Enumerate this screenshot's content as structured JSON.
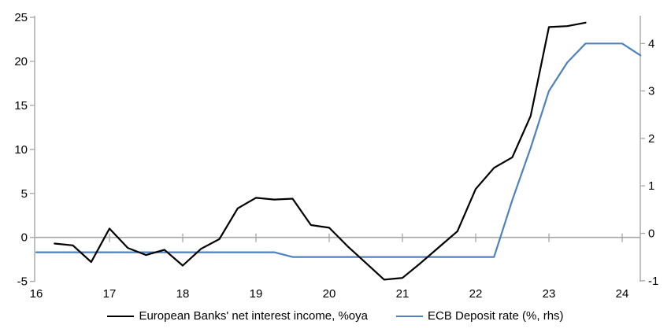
{
  "chart_data": {
    "type": "line",
    "title": "",
    "x_axis": {
      "min": 16,
      "max": 24.25,
      "ticks": [
        16,
        17,
        18,
        19,
        20,
        21,
        22,
        23,
        24
      ],
      "tick_labels": [
        "16",
        "17",
        "18",
        "19",
        "20",
        "21",
        "22",
        "23",
        "24"
      ]
    },
    "left_axis": {
      "min": -5,
      "max": 25,
      "ticks": [
        -5,
        0,
        5,
        10,
        15,
        20,
        25
      ],
      "tick_labels": [
        "-5",
        "0",
        "5",
        "10",
        "15",
        "20",
        "25"
      ]
    },
    "right_axis": {
      "min": -1,
      "max": 4.6,
      "ticks": [
        -1,
        0,
        1,
        2,
        3,
        4
      ],
      "tick_labels": [
        "-1",
        "0",
        "1",
        "2",
        "3",
        "4"
      ]
    },
    "grid": "zero-line-only",
    "legend_position": "bottom-center",
    "series": [
      {
        "name": "European Banks' net interest income, %oya",
        "axis": "left",
        "color": "#000000",
        "points": [
          [
            16.25,
            -0.7
          ],
          [
            16.5,
            -0.9
          ],
          [
            16.75,
            -2.8
          ],
          [
            17.0,
            1.0
          ],
          [
            17.25,
            -1.2
          ],
          [
            17.5,
            -2.0
          ],
          [
            17.75,
            -1.4
          ],
          [
            18.0,
            -3.2
          ],
          [
            18.25,
            -1.3
          ],
          [
            18.5,
            -0.2
          ],
          [
            18.75,
            3.3
          ],
          [
            19.0,
            4.5
          ],
          [
            19.25,
            4.3
          ],
          [
            19.5,
            4.4
          ],
          [
            19.75,
            1.4
          ],
          [
            20.0,
            1.1
          ],
          [
            20.25,
            -1.0
          ],
          [
            20.5,
            -2.9
          ],
          [
            20.75,
            -4.8
          ],
          [
            21.0,
            -4.6
          ],
          [
            21.25,
            -2.9
          ],
          [
            21.5,
            -1.1
          ],
          [
            21.75,
            0.7
          ],
          [
            22.0,
            5.5
          ],
          [
            22.25,
            7.9
          ],
          [
            22.5,
            9.1
          ],
          [
            22.75,
            13.8
          ],
          [
            23.0,
            23.9
          ],
          [
            23.25,
            24.0
          ],
          [
            23.5,
            24.4
          ]
        ]
      },
      {
        "name": "ECB Deposit rate (%, rhs)",
        "axis": "right",
        "color": "#4f81bd",
        "points": [
          [
            16.0,
            -0.4
          ],
          [
            19.25,
            -0.4
          ],
          [
            19.5,
            -0.5
          ],
          [
            22.25,
            -0.5
          ],
          [
            22.5,
            0.7
          ],
          [
            22.75,
            1.8
          ],
          [
            23.0,
            3.0
          ],
          [
            23.25,
            3.6
          ],
          [
            23.5,
            4.0
          ],
          [
            24.0,
            4.0
          ],
          [
            24.25,
            3.75
          ]
        ]
      }
    ],
    "colors": {
      "axis_line": "#a6a6a6",
      "zero_line": "#a6a6a6",
      "text": "#000000",
      "background": "#ffffff"
    }
  }
}
